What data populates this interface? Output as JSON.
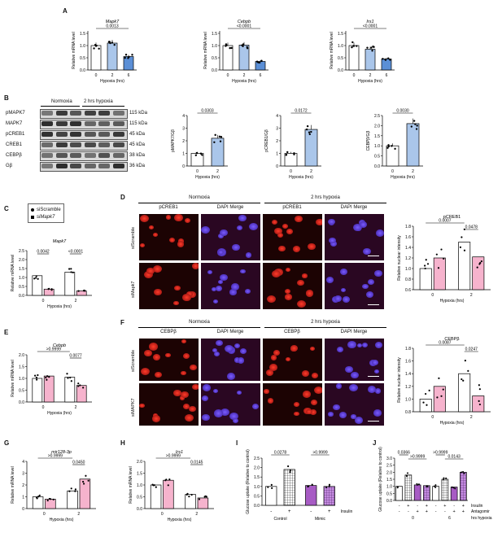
{
  "panels": {
    "A": "A",
    "B": "B",
    "C": "C",
    "D": "D",
    "E": "E",
    "F": "F",
    "G": "G",
    "H": "H",
    "I": "I",
    "J": "J"
  },
  "charts": {
    "A1": {
      "title": "Mapk7",
      "ylabel": "Relative mRNA level",
      "xlabel": "Hypoxia (hrs)",
      "categories": [
        "0",
        "2",
        "6"
      ],
      "values": [
        1.0,
        1.1,
        0.55
      ],
      "yticks": [
        "0.0",
        "0.5",
        "1.0",
        "1.5"
      ],
      "ylim": [
        0,
        1.6
      ],
      "fills": [
        "#ffffff",
        "#aac6ea",
        "#5b8fd6"
      ],
      "sig": [
        {
          "a": 0,
          "b": 2,
          "label": "0.0013"
        }
      ]
    },
    "A2": {
      "title": "Cebpb",
      "ylabel": "Relative mRNA level",
      "xlabel": "Hypoxia (hrs)",
      "categories": [
        "0",
        "2",
        "6"
      ],
      "values": [
        1.0,
        1.02,
        0.35
      ],
      "yticks": [
        "0.0",
        "0.5",
        "1.0",
        "1.5"
      ],
      "ylim": [
        0,
        1.6
      ],
      "fills": [
        "#ffffff",
        "#aac6ea",
        "#5b8fd6"
      ],
      "sig": [
        {
          "a": 0,
          "b": 2,
          "label": "<0.0001"
        }
      ]
    },
    "A3": {
      "title": "Irs1",
      "ylabel": "Relative mRNA level",
      "xlabel": "Hypoxia (hrs)",
      "categories": [
        "0",
        "2",
        "6"
      ],
      "values": [
        1.0,
        0.85,
        0.45
      ],
      "yticks": [
        "0.0",
        "0.5",
        "1.0",
        "1.5"
      ],
      "ylim": [
        0,
        1.6
      ],
      "fills": [
        "#ffffff",
        "#aac6ea",
        "#5b8fd6"
      ],
      "sig": [
        {
          "a": 0,
          "b": 2,
          "label": "<0.0001"
        }
      ]
    },
    "B1": {
      "title": "",
      "ylabel": "pMAPK7/Gβ",
      "xlabel": "Hypoxia (hrs)",
      "categories": [
        "0",
        "2"
      ],
      "values": [
        1.0,
        2.2
      ],
      "yticks": [
        "0",
        "1",
        "2",
        "3",
        "4"
      ],
      "ylim": [
        0,
        4
      ],
      "fills": [
        "#ffffff",
        "#aac6ea"
      ],
      "sig": [
        {
          "a": 0,
          "b": 1,
          "label": "0.0303"
        }
      ]
    },
    "B2": {
      "title": "",
      "ylabel": "pCREB1/Gβ",
      "xlabel": "Hypoxia (hrs)",
      "categories": [
        "0",
        "2"
      ],
      "values": [
        1.0,
        2.9
      ],
      "yticks": [
        "0",
        "1",
        "2",
        "3",
        "4"
      ],
      "ylim": [
        0,
        4
      ],
      "fills": [
        "#ffffff",
        "#aac6ea"
      ],
      "sig": [
        {
          "a": 0,
          "b": 1,
          "label": "0.0172"
        }
      ]
    },
    "B3": {
      "title": "",
      "ylabel": "CEBPβ/Gβ",
      "xlabel": "Hypoxia (hrs)",
      "categories": [
        "0",
        "2"
      ],
      "values": [
        1.0,
        2.1
      ],
      "yticks": [
        "0.0",
        "0.5",
        "1.0",
        "1.5",
        "2.0",
        "2.5"
      ],
      "ylim": [
        0,
        2.5
      ],
      "fills": [
        "#ffffff",
        "#aac6ea"
      ],
      "sig": [
        {
          "a": 0,
          "b": 1,
          "label": "0.0030"
        }
      ]
    },
    "C": {
      "title": "Mapk7",
      "ylabel": "Relative mRNA level",
      "xlabel": "Hypoxia (hrs)",
      "categories": [
        "0",
        "2"
      ],
      "groups": 2,
      "values": [
        [
          1.1,
          0.35
        ],
        [
          1.3,
          0.25
        ]
      ],
      "yticks": [
        "0.0",
        "0.5",
        "1.0",
        "1.5",
        "2.0",
        "2.5"
      ],
      "ylim": [
        0,
        2.5
      ],
      "fills": [
        "#ffffff",
        "#f6b3cd"
      ],
      "sig": [
        {
          "label": "0.0042",
          "g": 0
        },
        {
          "label": "<0.0001",
          "g": 1
        }
      ]
    },
    "D": {
      "title": "pCREB1",
      "ylabel": "Relative nuclear intensity",
      "xlabel": "Hypoxia (hrs)",
      "categories": [
        "0",
        "2"
      ],
      "groups": 2,
      "values": [
        [
          1.0,
          1.2
        ],
        [
          1.5,
          1.22
        ]
      ],
      "yticks": [
        "0.6",
        "0.8",
        "1.0",
        "1.2",
        "1.4",
        "1.6",
        "1.8"
      ],
      "ylim": [
        0.6,
        1.8
      ],
      "fills": [
        "#ffffff",
        "#f6b3cd"
      ],
      "sig": [
        {
          "label": "0.0007",
          "span": "a"
        },
        {
          "label": "0.0478",
          "g": 1
        }
      ]
    },
    "E": {
      "title": "Cebpb",
      "ylabel": "Relative mRNA level",
      "xlabel": "Hypoxia (hrs)",
      "categories": [
        "0",
        "2"
      ],
      "groups": 2,
      "values": [
        [
          1.0,
          1.1
        ],
        [
          1.05,
          0.7
        ]
      ],
      "yticks": [
        "0.0",
        "0.5",
        "1.0",
        "1.5",
        "2.0"
      ],
      "ylim": [
        0,
        2.0
      ],
      "fills": [
        "#ffffff",
        "#f6b3cd"
      ],
      "sig": [
        {
          "label": ">0.9999",
          "span": "a"
        },
        {
          "label": "0.0077",
          "g": 1
        }
      ]
    },
    "F": {
      "title": "CEBPβ",
      "ylabel": "Relative nuclear intensity",
      "xlabel": "Hypoxia (hrs)",
      "categories": [
        "0",
        "2"
      ],
      "groups": 2,
      "values": [
        [
          1.0,
          1.2
        ],
        [
          1.4,
          1.05
        ]
      ],
      "yticks": [
        "0.8",
        "1.0",
        "1.2",
        "1.4",
        "1.6",
        "1.8"
      ],
      "ylim": [
        0.8,
        1.8
      ],
      "fills": [
        "#ffffff",
        "#f6b3cd"
      ],
      "sig": [
        {
          "label": "0.0087",
          "span": "a"
        },
        {
          "label": "0.0247",
          "g": 1
        }
      ]
    },
    "G": {
      "title": "mir128-3p",
      "ylabel": "Relative mRNA level",
      "xlabel": "Hypoxia (hrs)",
      "categories": [
        "0",
        "2"
      ],
      "groups": 2,
      "values": [
        [
          1.0,
          0.8
        ],
        [
          1.5,
          2.5
        ]
      ],
      "yticks": [
        "0",
        "1",
        "2",
        "3",
        "4"
      ],
      "ylim": [
        0,
        4
      ],
      "fills": [
        "#ffffff",
        "#f6b3cd"
      ],
      "sig": [
        {
          "label": ">0.9999",
          "span": "a"
        },
        {
          "label": "0.0450",
          "g": 1
        }
      ]
    },
    "H": {
      "title": "Irs1",
      "ylabel": "Relative mRNA level",
      "xlabel": "Hypoxia (hrs)",
      "categories": [
        "0",
        "2"
      ],
      "groups": 2,
      "values": [
        [
          1.0,
          1.2
        ],
        [
          0.6,
          0.45
        ]
      ],
      "yticks": [
        "0.0",
        "0.5",
        "1.0",
        "1.5",
        "2.0"
      ],
      "ylim": [
        0,
        2.0
      ],
      "fills": [
        "#ffffff",
        "#f6b3cd"
      ],
      "sig": [
        {
          "label": ">0.9999",
          "span": "a"
        },
        {
          "label": "0.0145",
          "g": 1
        }
      ]
    },
    "I": {
      "title": "",
      "ylabel": "Glucose uptake (Relative to control)",
      "xlabel": "",
      "groups": [
        "Control",
        "Mimic"
      ],
      "row_label": "Insulin",
      "signs": [
        "-",
        "+",
        "-",
        "+"
      ],
      "values": [
        1.0,
        1.9,
        1.05,
        1.0
      ],
      "yticks": [
        "0.0",
        "0.5",
        "1.0",
        "1.5",
        "2.0",
        "2.5"
      ],
      "ylim": [
        0,
        2.5
      ],
      "fills": [
        "#ffffff",
        "checker",
        "#a75bc4",
        "checker-purple"
      ],
      "sig": [
        {
          "label": "0.0278",
          "a": 0,
          "b": 1
        },
        {
          "label": ">0.9999",
          "a": 2,
          "b": 3
        }
      ]
    },
    "J": {
      "title": "",
      "ylabel": "Glucose uptake (Relative to control)",
      "rows": [
        "Insulin",
        "Antagomir",
        "hrs hypoxia"
      ],
      "insulin": [
        "-",
        "+",
        "-",
        "+",
        "-",
        "+",
        "-",
        "+"
      ],
      "antagomir": [
        "-",
        "-",
        "+",
        "+",
        "-",
        "-",
        "+",
        "+"
      ],
      "hyp": [
        "0",
        "6"
      ],
      "values": [
        1.0,
        1.8,
        1.1,
        1.05,
        1.0,
        1.5,
        0.95,
        2.0
      ],
      "yticks": [
        "0.0",
        "0.5",
        "1.0",
        "1.5",
        "2.0",
        "2.5",
        "3.0"
      ],
      "ylim": [
        0,
        3
      ],
      "fills": [
        "#ffffff",
        "checker",
        "#a75bc4",
        "checker-purple",
        "#ffffff",
        "checker",
        "#a75bc4",
        "checker-purple"
      ],
      "sig": [
        {
          "label": "0.0366",
          "a": 0,
          "b": 1
        },
        {
          "label": ">0.9999",
          "a": 1,
          "b": 3
        },
        {
          "label": ">0.9999",
          "a": 4,
          "b": 5
        },
        {
          "label": "0.0143",
          "a": 5,
          "b": 7
        }
      ]
    }
  },
  "legendC": {
    "items": [
      "siScramble",
      "siMapk7"
    ]
  },
  "western": {
    "groups": [
      "Normoxia",
      "2 hrs hypoxia"
    ],
    "rows": [
      {
        "name": "pMAPK7",
        "kda": "115 kDa"
      },
      {
        "name": "MAPK7",
        "kda": "115 kDa"
      },
      {
        "name": "pCREB1",
        "kda": "45 kDa"
      },
      {
        "name": "CREB1",
        "kda": "45 kDa"
      },
      {
        "name": "CEBPβ",
        "kda": "38 kDa"
      },
      {
        "name": "Gβ",
        "kda": "36 kDa"
      }
    ]
  },
  "microD": {
    "cond": [
      "Normoxia",
      "2 hrs hypoxia"
    ],
    "cols": [
      "pCREB1",
      "DAPI Merge",
      "pCREB1",
      "DAPI Merge"
    ],
    "rows": [
      "siScramble",
      "siMapk7"
    ]
  },
  "microF": {
    "cond": [
      "Normoxia",
      "2 hrs hypoxia"
    ],
    "cols": [
      "CEBPβ",
      "DAPI Merge",
      "CEBPβ",
      "DAPI Merge"
    ],
    "rows": [
      "siScramble",
      "siMAPK7"
    ]
  }
}
